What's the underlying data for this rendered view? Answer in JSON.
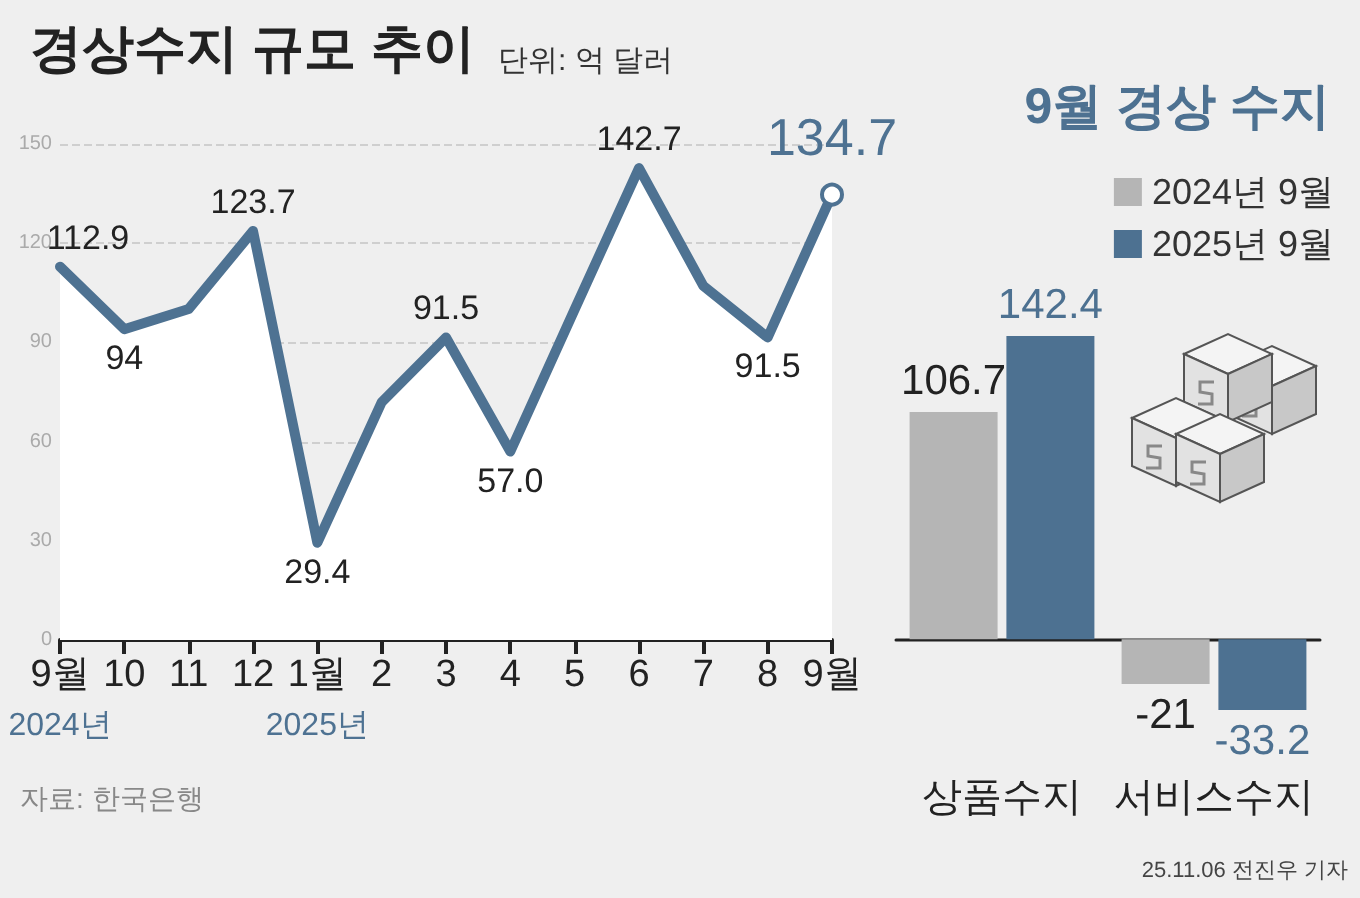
{
  "chart_data": [
    {
      "type": "area",
      "title": "경상수지 규모 추이",
      "subtitle": "단위: 억 달러",
      "categories": [
        "9월",
        "10",
        "11",
        "12",
        "1월",
        "2",
        "3",
        "4",
        "5",
        "6",
        "7",
        "8",
        "9월"
      ],
      "series": [
        {
          "color": "#4e7292",
          "values": [
            112.9,
            94,
            100.1,
            123.7,
            29.4,
            71.9,
            91.5,
            57.0,
            100,
            142.7,
            107.1,
            91.5,
            134.7
          ],
          "value_labels": [
            "112.9",
            "94",
            null,
            "123.7",
            "29.4",
            null,
            "91.5",
            "57.0",
            null,
            "142.7",
            null,
            "91.5",
            "134.7"
          ]
        }
      ],
      "ylim": [
        0,
        150
      ],
      "yticks": [
        0,
        30,
        60,
        90,
        120,
        150
      ],
      "grid": "y",
      "line_style": "solid",
      "annotations": [
        "2024년",
        "2025년",
        "자료: 한국은행"
      ]
    },
    {
      "type": "bar",
      "title": "9월 경상 수지",
      "categories": [
        "상품수지",
        "서비스수지"
      ],
      "series": [
        {
          "name": "2024년 9월",
          "color": "#b5b5b5",
          "values": [
            106.7,
            -21
          ]
        },
        {
          "name": "2025년 9월",
          "color": "#4d7191",
          "values": [
            142.4,
            -33.2
          ]
        }
      ],
      "data_labels": true,
      "legend": "top right",
      "annotations": [
        "25.11.06 전진우 기자"
      ]
    }
  ]
}
